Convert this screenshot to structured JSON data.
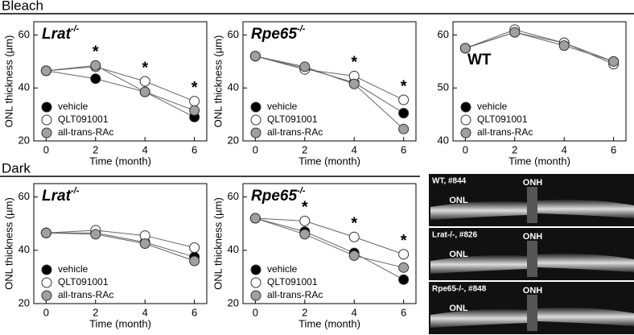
{
  "sections": [
    "Bleach",
    "Dark"
  ],
  "chart_data": [
    {
      "type": "line",
      "title": "Lrat",
      "title_sup": "-/-",
      "xlabel": "Time (month)",
      "ylabel": "ONL thickness (µm)",
      "x": [
        0,
        2,
        4,
        6
      ],
      "xlim": [
        -0.5,
        6.5
      ],
      "ylim": [
        20,
        65
      ],
      "xticks": [
        0,
        2,
        4,
        6
      ],
      "yticks": [
        20,
        40,
        60
      ],
      "series": [
        {
          "name": "vehicle",
          "color": "#000000",
          "values": [
            46.5,
            43.5,
            38.5,
            29
          ]
        },
        {
          "name": "QLT091001",
          "color": "#ffffff",
          "values": [
            46.5,
            48,
            42.5,
            35
          ]
        },
        {
          "name": "all-trans-RAc",
          "color": "#a0a0a0",
          "values": [
            46.5,
            48.5,
            38.5,
            31.5
          ]
        }
      ],
      "annotations": [
        {
          "x": 2,
          "text": "*"
        },
        {
          "x": 4,
          "text": "*"
        },
        {
          "x": 6,
          "text": "*"
        }
      ]
    },
    {
      "type": "line",
      "title": "Rpe65",
      "title_sup": "-/-",
      "xlabel": "Time (month)",
      "ylabel": "ONL thickness (µm)",
      "x": [
        0,
        2,
        4,
        6
      ],
      "xlim": [
        -0.5,
        6.5
      ],
      "ylim": [
        20,
        65
      ],
      "xticks": [
        0,
        2,
        4,
        6
      ],
      "yticks": [
        20,
        40,
        60
      ],
      "series": [
        {
          "name": "vehicle",
          "color": "#000000",
          "values": [
            52,
            47.5,
            42,
            30.5
          ]
        },
        {
          "name": "QLT091001",
          "color": "#ffffff",
          "values": [
            52,
            47,
            44.5,
            35.5
          ]
        },
        {
          "name": "all-trans-RAc",
          "color": "#a0a0a0",
          "values": [
            52,
            48,
            41.5,
            24.5
          ]
        }
      ],
      "annotations": [
        {
          "x": 4,
          "text": "*"
        },
        {
          "x": 6,
          "text": "*"
        }
      ]
    },
    {
      "type": "line",
      "title": "WT",
      "xlabel": "Time (month)",
      "x": [
        0,
        2,
        4,
        6
      ],
      "xlim": [
        -0.5,
        6.5
      ],
      "ylim": [
        40,
        62.5
      ],
      "xticks": [
        0,
        2,
        4,
        6
      ],
      "yticks": [
        40,
        50,
        60
      ],
      "series": [
        {
          "name": "vehicle",
          "color": "#000000",
          "values": [
            57.5,
            60.5,
            58.5,
            55
          ]
        },
        {
          "name": "QLT091001",
          "color": "#ffffff",
          "values": [
            57.5,
            61,
            58.5,
            54.5
          ]
        },
        {
          "name": "all-trans-RAc",
          "color": "#a0a0a0",
          "values": [
            57.5,
            60.5,
            58,
            55
          ]
        }
      ]
    },
    {
      "type": "line",
      "title": "Lrat",
      "title_sup": "-/-",
      "xlabel": "Time (month)",
      "ylabel": "ONL thickness (µm)",
      "x": [
        0,
        2,
        4,
        6
      ],
      "xlim": [
        -0.5,
        6.5
      ],
      "ylim": [
        20,
        65
      ],
      "xticks": [
        0,
        2,
        4,
        6
      ],
      "yticks": [
        20,
        40,
        60
      ],
      "series": [
        {
          "name": "vehicle",
          "color": "#000000",
          "values": [
            46.5,
            46.5,
            43,
            37.5
          ]
        },
        {
          "name": "QLT091001",
          "color": "#ffffff",
          "values": [
            46.5,
            47.5,
            45.5,
            41
          ]
        },
        {
          "name": "all-trans-RAc",
          "color": "#a0a0a0",
          "values": [
            46.5,
            46,
            42.5,
            36
          ]
        }
      ]
    },
    {
      "type": "line",
      "title": "Rpe65",
      "title_sup": "-/-",
      "xlabel": "Time (month)",
      "ylabel": "ONL thickness (µm)",
      "x": [
        0,
        2,
        4,
        6
      ],
      "xlim": [
        -0.5,
        6.5
      ],
      "ylim": [
        20,
        65
      ],
      "xticks": [
        0,
        2,
        4,
        6
      ],
      "yticks": [
        20,
        40,
        60
      ],
      "series": [
        {
          "name": "vehicle",
          "color": "#000000",
          "values": [
            52,
            47,
            39,
            29
          ]
        },
        {
          "name": "QLT091001",
          "color": "#ffffff",
          "values": [
            52,
            51,
            45,
            38.5
          ]
        },
        {
          "name": "all-trans-RAc",
          "color": "#a0a0a0",
          "values": [
            52,
            46,
            38,
            33.5
          ]
        }
      ],
      "annotations": [
        {
          "x": 2,
          "text": "*"
        },
        {
          "x": 4,
          "text": "*"
        },
        {
          "x": 6,
          "text": "*"
        }
      ]
    }
  ],
  "images": [
    {
      "label": "WT, #844",
      "onh": "ONH",
      "onl": "ONL"
    },
    {
      "label": "Lrat-/-, #826",
      "onh": "ONH",
      "onl": "ONL"
    },
    {
      "label": "Rpe65-/-, #848",
      "onh": "ONH",
      "onl": "ONL"
    }
  ]
}
